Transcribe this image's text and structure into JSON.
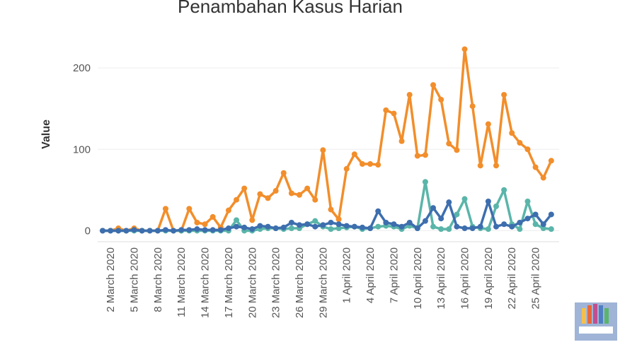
{
  "chart_data": {
    "type": "line",
    "title": "Penambahan Kasus Harian",
    "y_label": "Value",
    "categories": [
      null,
      "2 March 2020",
      null,
      null,
      "5 March 2020",
      null,
      null,
      "8 March 2020",
      null,
      null,
      "11 March 2020",
      null,
      null,
      "14 March 2020",
      null,
      null,
      "17 March 2020",
      null,
      null,
      "20 March 2020",
      null,
      null,
      "23 March 2020",
      null,
      null,
      "26 March 2020",
      null,
      null,
      "29 March 2020",
      null,
      null,
      "1 April 2020",
      null,
      null,
      "4 April 2020",
      null,
      null,
      "7 April 2020",
      null,
      null,
      "10 April 2020",
      null,
      null,
      "13 April 2020",
      null,
      null,
      "16 April 2020",
      null,
      null,
      "19 April 2020",
      null,
      null,
      "22 April 2020",
      null,
      null,
      "25 April 2020",
      null,
      null
    ],
    "series": [
      {
        "color": "#f28e2b",
        "values": [
          0,
          0,
          3,
          0,
          3,
          0,
          0,
          0,
          27,
          0,
          0,
          27,
          10,
          8,
          17,
          4,
          25,
          38,
          52,
          13,
          45,
          40,
          49,
          71,
          46,
          44,
          52,
          38,
          99,
          26,
          14,
          76,
          94,
          82,
          82,
          81,
          148,
          144,
          110,
          167,
          92,
          93,
          179,
          161,
          107,
          99,
          223,
          153,
          80,
          131,
          80,
          167,
          120,
          108,
          100,
          78,
          65,
          86
        ]
      },
      {
        "color": "#5ab5a9",
        "values": [
          0,
          0,
          0,
          0,
          0,
          0,
          0,
          0,
          0,
          0,
          0,
          0,
          0,
          0,
          0,
          0,
          0,
          13,
          0,
          0,
          2,
          3,
          3,
          2,
          3,
          3,
          8,
          12,
          5,
          2,
          3,
          4,
          5,
          2,
          3,
          5,
          6,
          5,
          2,
          6,
          3,
          60,
          5,
          2,
          2,
          20,
          39,
          5,
          3,
          2,
          30,
          50,
          8,
          2,
          36,
          8,
          3,
          2
        ]
      },
      {
        "color": "#3d6eae",
        "values": [
          0,
          0,
          0,
          0,
          1,
          0,
          0,
          0,
          1,
          0,
          1,
          1,
          2,
          1,
          1,
          1,
          3,
          5,
          4,
          2,
          6,
          5,
          3,
          4,
          10,
          7,
          8,
          5,
          7,
          10,
          8,
          6,
          5,
          4,
          3,
          24,
          10,
          8,
          5,
          10,
          3,
          12,
          28,
          15,
          35,
          5,
          3,
          3,
          5,
          36,
          5,
          8,
          5,
          10,
          15,
          20,
          8,
          20
        ]
      }
    ],
    "ylim": [
      -10,
      240
    ],
    "yticks": [
      0,
      100,
      200
    ],
    "grid": true
  }
}
